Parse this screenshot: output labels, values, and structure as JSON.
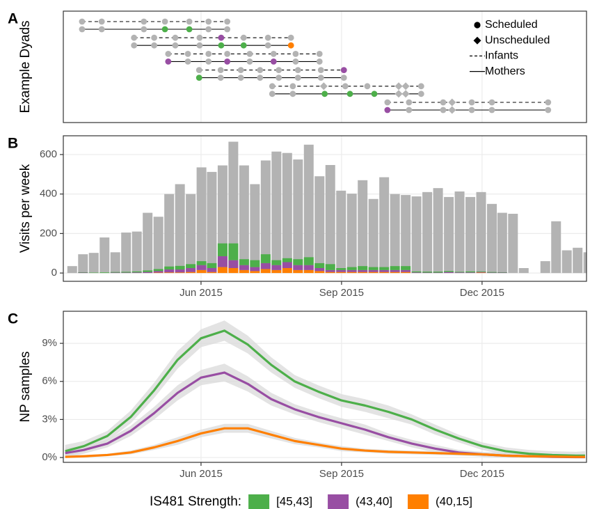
{
  "chart_data": [
    {
      "type": "dyads",
      "panel_label": "A",
      "ylabel": "Example Dyads",
      "xlim": [
        3.06,
        14.23
      ],
      "xticks": [
        6,
        9,
        12
      ],
      "grid": true,
      "legend_corner": "top-right",
      "legend": [
        {
          "label": "Scheduled",
          "symbol": "circle"
        },
        {
          "label": "Unscheduled",
          "symbol": "diamond"
        },
        {
          "label": "Infants",
          "symbol": "dashed"
        },
        {
          "label": "Mothers",
          "symbol": "solid"
        }
      ],
      "dyads": [
        {
          "infant": {
            "x": [
              3.46,
              3.88,
              4.78,
              5.23,
              5.75,
              6.16,
              6.56
            ],
            "colors": [
              "#b3b3b3",
              "#b3b3b3",
              "#b3b3b3",
              "#b3b3b3",
              "#b3b3b3",
              "#b3b3b3",
              "#b3b3b3"
            ],
            "shapes": [
              "circle",
              "circle",
              "circle",
              "circle",
              "circle",
              "circle",
              "circle"
            ]
          },
          "mother": {
            "x": [
              3.46,
              3.88,
              4.78,
              5.23,
              5.75,
              6.16,
              6.56
            ],
            "colors": [
              "#b3b3b3",
              "#b3b3b3",
              "#b3b3b3",
              "#4daf4a",
              "#4daf4a",
              "#b3b3b3",
              "#b3b3b3"
            ],
            "shapes": [
              "circle",
              "circle",
              "circle",
              "circle",
              "circle",
              "circle",
              "circle"
            ]
          }
        },
        {
          "infant": {
            "x": [
              4.57,
              5.0,
              5.45,
              5.97,
              6.43,
              6.91,
              7.43,
              7.92
            ],
            "colors": [
              "#b3b3b3",
              "#b3b3b3",
              "#b3b3b3",
              "#b3b3b3",
              "#984ea3",
              "#b3b3b3",
              "#b3b3b3",
              "#b3b3b3"
            ],
            "shapes": [
              "circle",
              "circle",
              "circle",
              "circle",
              "circle",
              "circle",
              "circle",
              "circle"
            ]
          },
          "mother": {
            "x": [
              4.57,
              5.0,
              5.45,
              5.97,
              6.43,
              6.91,
              7.43,
              7.92
            ],
            "colors": [
              "#b3b3b3",
              "#b3b3b3",
              "#b3b3b3",
              "#b3b3b3",
              "#4daf4a",
              "#4daf4a",
              "#b3b3b3",
              "#ff7f00"
            ],
            "shapes": [
              "circle",
              "circle",
              "circle",
              "circle",
              "circle",
              "circle",
              "circle",
              "circle"
            ]
          }
        },
        {
          "infant": {
            "x": [
              5.3,
              5.72,
              6.16,
              6.56,
              7.04,
              7.55,
              8.02,
              8.53
            ],
            "colors": [
              "#b3b3b3",
              "#b3b3b3",
              "#b3b3b3",
              "#b3b3b3",
              "#b3b3b3",
              "#b3b3b3",
              "#b3b3b3",
              "#b3b3b3"
            ],
            "shapes": [
              "circle",
              "circle",
              "circle",
              "circle",
              "circle",
              "circle",
              "circle",
              "circle"
            ]
          },
          "mother": {
            "x": [
              5.3,
              5.72,
              6.16,
              6.56,
              7.04,
              7.55,
              8.02,
              8.53
            ],
            "colors": [
              "#984ea3",
              "#b3b3b3",
              "#b3b3b3",
              "#984ea3",
              "#b3b3b3",
              "#984ea3",
              "#b3b3b3",
              "#b3b3b3"
            ],
            "shapes": [
              "circle",
              "circle",
              "circle",
              "circle",
              "circle",
              "circle",
              "circle",
              "circle"
            ]
          }
        },
        {
          "infant": {
            "x": [
              5.96,
              6.42,
              6.85,
              7.26,
              7.66,
              8.07,
              8.56,
              9.05
            ],
            "colors": [
              "#b3b3b3",
              "#b3b3b3",
              "#b3b3b3",
              "#b3b3b3",
              "#b3b3b3",
              "#b3b3b3",
              "#b3b3b3",
              "#984ea3"
            ],
            "shapes": [
              "circle",
              "circle",
              "circle",
              "circle",
              "circle",
              "circle",
              "circle",
              "circle"
            ]
          },
          "mother": {
            "x": [
              5.96,
              6.42,
              6.85,
              7.26,
              7.66,
              8.07,
              8.56,
              9.05
            ],
            "colors": [
              "#4daf4a",
              "#b3b3b3",
              "#b3b3b3",
              "#b3b3b3",
              "#b3b3b3",
              "#b3b3b3",
              "#b3b3b3",
              "#b3b3b3"
            ],
            "shapes": [
              "circle",
              "circle",
              "circle",
              "circle",
              "circle",
              "circle",
              "circle",
              "circle"
            ]
          }
        },
        {
          "infant": {
            "x": [
              7.52,
              7.96,
              8.62,
              9.08,
              9.55,
              10.22,
              10.37,
              10.7
            ],
            "colors": [
              "#b3b3b3",
              "#b3b3b3",
              "#b3b3b3",
              "#b3b3b3",
              "#b3b3b3",
              "#b3b3b3",
              "#b3b3b3",
              "#b3b3b3"
            ],
            "shapes": [
              "circle",
              "circle",
              "diamond",
              "circle",
              "circle",
              "diamond",
              "diamond",
              "circle"
            ]
          },
          "mother": {
            "x": [
              7.52,
              7.96,
              8.64,
              9.18,
              9.7,
              10.22,
              10.37,
              10.7
            ],
            "colors": [
              "#b3b3b3",
              "#b3b3b3",
              "#4daf4a",
              "#4daf4a",
              "#4daf4a",
              "#b3b3b3",
              "#b3b3b3",
              "#b3b3b3"
            ],
            "shapes": [
              "circle",
              "circle",
              "circle",
              "circle",
              "circle",
              "diamond",
              "diamond",
              "circle"
            ]
          }
        },
        {
          "infant": {
            "x": [
              9.98,
              10.44,
              11.17,
              11.36,
              11.78,
              12.21,
              13.41
            ],
            "colors": [
              "#b3b3b3",
              "#b3b3b3",
              "#b3b3b3",
              "#b3b3b3",
              "#b3b3b3",
              "#b3b3b3",
              "#b3b3b3"
            ],
            "shapes": [
              "circle",
              "circle",
              "circle",
              "diamond",
              "circle",
              "circle",
              "circle"
            ]
          },
          "mother": {
            "x": [
              9.98,
              10.44,
              11.17,
              11.36,
              11.78,
              12.21,
              13.41
            ],
            "colors": [
              "#984ea3",
              "#b3b3b3",
              "#b3b3b3",
              "#b3b3b3",
              "#b3b3b3",
              "#b3b3b3",
              "#b3b3b3"
            ],
            "shapes": [
              "circle",
              "circle",
              "circle",
              "diamond",
              "circle",
              "circle",
              "circle"
            ]
          }
        }
      ]
    },
    {
      "type": "stacked_bar",
      "panel_label": "B",
      "ylabel": "Visits per week",
      "xlim": [
        3.06,
        14.23
      ],
      "xticks": [
        {
          "value": 6,
          "label": "Jun 2015"
        },
        {
          "value": 9,
          "label": "Sep 2015"
        },
        {
          "value": 12,
          "label": "Dec 2015"
        }
      ],
      "ylim": [
        -42,
        695
      ],
      "yticks": [
        0,
        200,
        400,
        600
      ],
      "grid": true,
      "x": [
        3.25,
        3.48,
        3.71,
        3.94,
        4.17,
        4.4,
        4.63,
        4.86,
        5.09,
        5.32,
        5.55,
        5.78,
        6.01,
        6.23,
        6.46,
        6.69,
        6.92,
        7.15,
        7.38,
        7.61,
        7.84,
        8.07,
        8.3,
        8.53,
        8.76,
        8.99,
        9.22,
        9.45,
        9.68,
        9.91,
        10.14,
        10.37,
        10.6,
        10.83,
        11.06,
        11.29,
        11.52,
        11.75,
        11.98,
        12.21,
        12.43,
        12.66,
        12.89,
        13.12,
        13.35,
        13.58,
        13.81,
        14.04,
        14.27
      ],
      "values": [
        35,
        95,
        102,
        180,
        105,
        205,
        210,
        305,
        285,
        400,
        450,
        400,
        535,
        512,
        545,
        665,
        545,
        450,
        570,
        615,
        608,
        575,
        650,
        490,
        547,
        417,
        402,
        470,
        375,
        485,
        400,
        395,
        388,
        410,
        430,
        385,
        413,
        385,
        410,
        350,
        305,
        300,
        25,
        null,
        60,
        262,
        115,
        128,
        105
      ],
      "color": "#b3b3b3",
      "series": [
        {
          "color": "#ff7f00",
          "values": [
            0,
            0,
            0,
            0,
            0,
            0,
            0,
            0,
            2,
            3,
            3,
            5,
            15,
            5,
            30,
            25,
            15,
            10,
            20,
            15,
            25,
            15,
            15,
            10,
            5,
            5,
            5,
            5,
            5,
            5,
            5,
            5,
            0,
            0,
            0,
            0,
            0,
            0,
            2,
            0,
            0,
            0,
            0,
            null,
            0,
            0,
            0,
            0,
            0
          ]
        },
        {
          "color": "#984ea3",
          "values": [
            0,
            2,
            0,
            0,
            2,
            2,
            3,
            5,
            8,
            15,
            15,
            20,
            25,
            20,
            55,
            40,
            25,
            20,
            30,
            25,
            30,
            25,
            25,
            15,
            10,
            10,
            10,
            10,
            10,
            10,
            10,
            10,
            3,
            2,
            2,
            5,
            3,
            3,
            3,
            2,
            2,
            0,
            0,
            null,
            0,
            0,
            0,
            0,
            0
          ]
        },
        {
          "color": "#4daf4a",
          "values": [
            0,
            2,
            2,
            3,
            3,
            4,
            5,
            8,
            10,
            15,
            18,
            20,
            20,
            25,
            65,
            85,
            30,
            35,
            45,
            25,
            20,
            30,
            40,
            25,
            30,
            10,
            15,
            20,
            15,
            15,
            20,
            20,
            5,
            5,
            5,
            5,
            3,
            5,
            3,
            3,
            2,
            0,
            0,
            null,
            0,
            0,
            0,
            0,
            0
          ]
        }
      ]
    },
    {
      "type": "line",
      "panel_label": "C",
      "ylabel": "NP samples",
      "legend_title": "IS481 Strength:",
      "legend_corner": "bottom",
      "xlim": [
        3.06,
        14.23
      ],
      "xticks": [
        {
          "value": 6,
          "label": "Jun 2015"
        },
        {
          "value": 9,
          "label": "Sep 2015"
        },
        {
          "value": 12,
          "label": "Dec 2015"
        }
      ],
      "ylim": [
        -0.38,
        11.53
      ],
      "yticks": [
        {
          "value": 0,
          "label": "0%"
        },
        {
          "value": 3,
          "label": "3%"
        },
        {
          "value": 6,
          "label": "6%"
        },
        {
          "value": 9,
          "label": "9%"
        }
      ],
      "grid": true,
      "x": [
        3.1,
        3.5,
        4,
        4.5,
        5,
        5.5,
        6,
        6.5,
        7,
        7.5,
        8,
        8.5,
        9,
        9.5,
        10,
        10.5,
        11,
        11.5,
        12,
        12.5,
        13,
        13.5,
        14,
        14.2
      ],
      "band_color": "#d9d9d9",
      "series": [
        {
          "name": "[45,43]",
          "color": "#4daf4a",
          "values": [
            0.5,
            0.9,
            1.7,
            3.2,
            5.3,
            7.7,
            9.4,
            10.0,
            8.9,
            7.3,
            6.0,
            5.2,
            4.5,
            4.1,
            3.6,
            3.0,
            2.2,
            1.5,
            0.9,
            0.5,
            0.3,
            0.2,
            0.15,
            0.15
          ],
          "lower": [
            0,
            0.5,
            1.3,
            2.7,
            4.7,
            7.0,
            8.7,
            9.2,
            8.2,
            6.7,
            5.5,
            4.7,
            4.0,
            3.6,
            3.1,
            2.6,
            1.8,
            1.2,
            0.6,
            0.2,
            0,
            0,
            0,
            0
          ],
          "upper": [
            1.0,
            1.3,
            2.1,
            3.7,
            5.9,
            8.4,
            10.1,
            10.8,
            9.6,
            7.9,
            6.5,
            5.7,
            5.0,
            4.6,
            4.1,
            3.4,
            2.6,
            1.8,
            1.2,
            0.8,
            0.6,
            0.5,
            0.45,
            0.5
          ]
        },
        {
          "name": "(43,40]",
          "color": "#984ea3",
          "values": [
            0.35,
            0.6,
            1.1,
            2.1,
            3.5,
            5.1,
            6.3,
            6.7,
            5.8,
            4.6,
            3.8,
            3.2,
            2.7,
            2.2,
            1.6,
            1.1,
            0.7,
            0.4,
            0.25,
            0.15,
            0.1,
            0.05,
            0.03,
            0.03
          ],
          "lower": [
            0,
            0.3,
            0.8,
            1.7,
            3.0,
            4.5,
            5.7,
            6.0,
            5.2,
            4.1,
            3.4,
            2.8,
            2.3,
            1.8,
            1.3,
            0.8,
            0.4,
            0.2,
            0.05,
            0,
            0,
            0,
            0,
            0
          ],
          "upper": [
            0.75,
            0.9,
            1.4,
            2.5,
            4.0,
            5.7,
            6.9,
            7.4,
            6.4,
            5.1,
            4.2,
            3.6,
            3.1,
            2.6,
            1.9,
            1.4,
            1.0,
            0.6,
            0.45,
            0.35,
            0.3,
            0.25,
            0.23,
            0.28
          ]
        },
        {
          "name": "(40,15]",
          "color": "#ff7f00",
          "values": [
            0.05,
            0.1,
            0.2,
            0.4,
            0.8,
            1.3,
            1.9,
            2.3,
            2.3,
            1.8,
            1.3,
            1.0,
            0.7,
            0.55,
            0.45,
            0.4,
            0.35,
            0.3,
            0.25,
            0.15,
            0.1,
            0.08,
            0.05,
            0.05
          ],
          "lower": [
            0,
            0,
            0.1,
            0.25,
            0.6,
            1.0,
            1.6,
            1.95,
            1.95,
            1.5,
            1.05,
            0.8,
            0.5,
            0.4,
            0.3,
            0.25,
            0.2,
            0.15,
            0.1,
            0,
            0,
            0,
            0,
            0
          ],
          "upper": [
            0.2,
            0.2,
            0.3,
            0.55,
            1.0,
            1.6,
            2.2,
            2.65,
            2.65,
            2.1,
            1.55,
            1.2,
            0.9,
            0.7,
            0.6,
            0.55,
            0.5,
            0.45,
            0.4,
            0.3,
            0.25,
            0.23,
            0.2,
            0.25
          ]
        }
      ]
    }
  ]
}
